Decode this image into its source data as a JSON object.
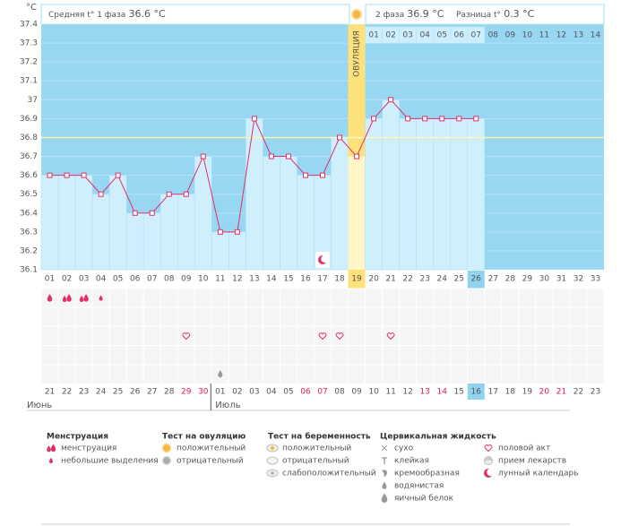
{
  "header": {
    "unit": "°C",
    "phase1_label": "Средняя t° 1 фаза",
    "phase1_value": "36.6 °C",
    "phase2_label": "2 фаза",
    "phase2_value": "36.9 °C",
    "diff_label": "Разница t°",
    "diff_value": "0.3 °C"
  },
  "chart_data": {
    "type": "line",
    "categories": [
      "01",
      "02",
      "03",
      "04",
      "05",
      "06",
      "07",
      "08",
      "09",
      "10",
      "11",
      "12",
      "13",
      "14",
      "15",
      "16",
      "17",
      "18",
      "19",
      "20",
      "21",
      "22",
      "23",
      "24",
      "25",
      "26",
      "27",
      "28",
      "29",
      "30",
      "31",
      "32",
      "33"
    ],
    "values": [
      36.6,
      36.6,
      36.6,
      36.5,
      36.6,
      36.4,
      36.4,
      36.5,
      36.5,
      36.7,
      36.3,
      36.3,
      36.9,
      36.7,
      36.7,
      36.6,
      36.6,
      36.8,
      36.7,
      36.9,
      37.0,
      36.9,
      36.9,
      36.9,
      36.9,
      36.9,
      null,
      null,
      null,
      null,
      null,
      null,
      null
    ],
    "ylim": [
      36.1,
      37.4
    ],
    "yticks": [
      36.1,
      36.2,
      36.3,
      36.4,
      36.5,
      36.6,
      36.7,
      36.8,
      36.9,
      37,
      37.1,
      37.2,
      37.3,
      37.4
    ],
    "color": "#e0306a",
    "cover_line": 36.8,
    "ovulation_index": 18,
    "ovulation_label": "ОВУЛЯЦИЯ",
    "today_index": 25,
    "post_ovulation_days": [
      "01",
      "02",
      "03",
      "04",
      "05",
      "06",
      "07",
      "08",
      "09",
      "10",
      "11",
      "12",
      "13",
      "14"
    ],
    "chart_markers": [
      {
        "day": 16,
        "icon": "moon"
      }
    ]
  },
  "dates": [
    {
      "label": "21",
      "red": false
    },
    {
      "label": "22",
      "red": false
    },
    {
      "label": "23",
      "red": false
    },
    {
      "label": "24",
      "red": false
    },
    {
      "label": "25",
      "red": false
    },
    {
      "label": "26",
      "red": false
    },
    {
      "label": "27",
      "red": false
    },
    {
      "label": "28",
      "red": false
    },
    {
      "label": "29",
      "red": true
    },
    {
      "label": "30",
      "red": true
    },
    {
      "label": "01",
      "red": false
    },
    {
      "label": "02",
      "red": false
    },
    {
      "label": "03",
      "red": false
    },
    {
      "label": "04",
      "red": false
    },
    {
      "label": "05",
      "red": false
    },
    {
      "label": "06",
      "red": true
    },
    {
      "label": "07",
      "red": true
    },
    {
      "label": "08",
      "red": false
    },
    {
      "label": "09",
      "red": false
    },
    {
      "label": "10",
      "red": false
    },
    {
      "label": "11",
      "red": false
    },
    {
      "label": "12",
      "red": false
    },
    {
      "label": "13",
      "red": true
    },
    {
      "label": "14",
      "red": true
    },
    {
      "label": "15",
      "red": false
    },
    {
      "label": "16",
      "red": false
    },
    {
      "label": "17",
      "red": false
    },
    {
      "label": "18",
      "red": false
    },
    {
      "label": "19",
      "red": false
    },
    {
      "label": "20",
      "red": true
    },
    {
      "label": "21",
      "red": true
    },
    {
      "label": "22",
      "red": false
    },
    {
      "label": "23",
      "red": false
    }
  ],
  "months": [
    {
      "label": "Июнь",
      "start": 0
    },
    {
      "label": "Июль",
      "start": 10
    }
  ],
  "markers": [
    {
      "day": 0,
      "row": 0,
      "icon": "drop"
    },
    {
      "day": 1,
      "row": 0,
      "icon": "drop2"
    },
    {
      "day": 2,
      "row": 0,
      "icon": "drop2"
    },
    {
      "day": 3,
      "row": 0,
      "icon": "drop-small"
    },
    {
      "day": 8,
      "row": 2,
      "icon": "heart"
    },
    {
      "day": 16,
      "row": 2,
      "icon": "heart"
    },
    {
      "day": 17,
      "row": 2,
      "icon": "heart"
    },
    {
      "day": 20,
      "row": 2,
      "icon": "heart"
    },
    {
      "day": 10,
      "row": 4,
      "icon": "drop-gray"
    }
  ],
  "legend": [
    {
      "title": "Менструация",
      "items": [
        {
          "icon": "drop2",
          "label": "менструация"
        },
        {
          "icon": "drop-small",
          "label": "небольшие выделения"
        }
      ]
    },
    {
      "title": "Тест на овуляцию",
      "items": [
        {
          "icon": "circle-pos",
          "label": "положительный"
        },
        {
          "icon": "circle-neg",
          "label": "отрицательный"
        }
      ]
    },
    {
      "title": "Тест на беременность",
      "items": [
        {
          "icon": "preg-pos",
          "label": "положительный"
        },
        {
          "icon": "preg-neg",
          "label": "отрицательный"
        },
        {
          "icon": "preg-weak",
          "label": "слабоположительный"
        }
      ]
    },
    {
      "title": "Цервикальная жидкость",
      "items": [
        {
          "icon": "x",
          "label": "сухо"
        },
        {
          "icon": "t",
          "label": "клейкая"
        },
        {
          "icon": "cream",
          "label": "кремообразная"
        },
        {
          "icon": "drop-gray",
          "label": "водянистая"
        },
        {
          "icon": "drop-gray-big",
          "label": "яичный белок"
        }
      ]
    },
    {
      "items": [
        {
          "icon": "heart",
          "label": "половой акт"
        },
        {
          "icon": "pill",
          "label": "прием лекарств"
        },
        {
          "icon": "moon",
          "label": "лунный календарь"
        }
      ]
    }
  ]
}
